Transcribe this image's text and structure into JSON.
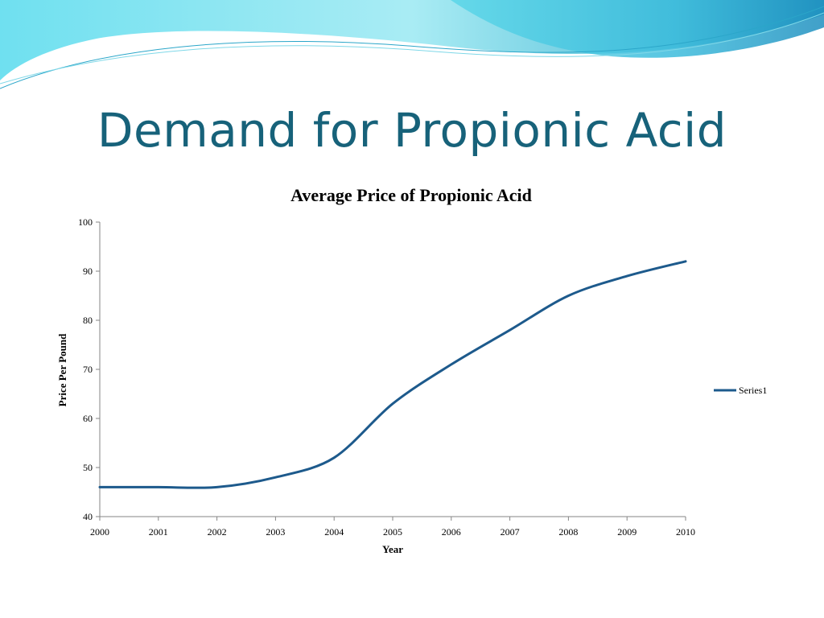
{
  "slide": {
    "title": "Demand for Propionic Acid"
  },
  "colors": {
    "title": "#17627a",
    "series": "#1d5a8c",
    "wave_light": "#a8e8f0",
    "wave_mid": "#5fd3e6",
    "wave_dark": "#2ba6c9"
  },
  "chart_data": {
    "type": "line",
    "title": "Average Price of Propionic Acid",
    "xlabel": "Year",
    "ylabel": "Price Per Pound",
    "x": [
      2000,
      2001,
      2002,
      2003,
      2004,
      2005,
      2006,
      2007,
      2008,
      2009,
      2010
    ],
    "x_tick_labels": [
      "2000",
      "2001",
      "2002",
      "2003",
      "2004",
      "2005",
      "2006",
      "2007",
      "2008",
      "2009",
      "2010"
    ],
    "y_tick_labels": [
      "40",
      "50",
      "60",
      "70",
      "80",
      "90",
      "100"
    ],
    "ylim": [
      40,
      100
    ],
    "y_tick_step": 10,
    "grid": false,
    "smooth": true,
    "legend_position": "right",
    "series": [
      {
        "name": "Series1",
        "values": [
          46,
          46,
          46,
          48,
          52,
          63,
          71,
          78,
          85,
          89,
          92
        ]
      }
    ]
  }
}
